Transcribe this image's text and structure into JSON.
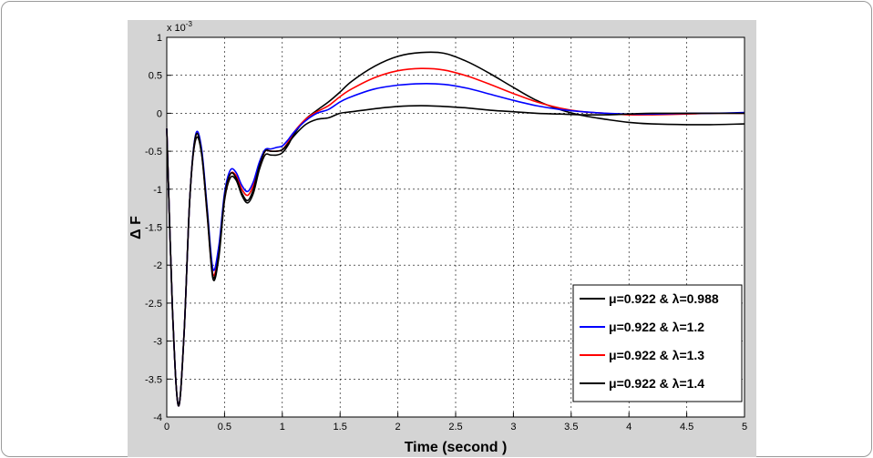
{
  "chart_data": {
    "type": "line",
    "title": "",
    "xlabel": "Time (second )",
    "ylabel": "Δ F",
    "y_multiplier_label": "x 10",
    "y_multiplier_exponent": "-3",
    "xlim": [
      0,
      5
    ],
    "ylim": [
      -4,
      1
    ],
    "x_ticks": [
      "0",
      "0.5",
      "1",
      "1.5",
      "2",
      "2.5",
      "3",
      "3.5",
      "4",
      "4.5",
      "5"
    ],
    "y_ticks": [
      "1",
      "0.5",
      "0",
      "-0.5",
      "-1",
      "-1.5",
      "-2",
      "-2.5",
      "-3",
      "-3.5",
      "-4"
    ],
    "grid": true,
    "legend_position": "bottom-right",
    "series": [
      {
        "name": "μ=0.922 & λ=0.988",
        "color": "#000000",
        "x": [
          0,
          0.05,
          0.1,
          0.15,
          0.2,
          0.25,
          0.3,
          0.35,
          0.4,
          0.45,
          0.5,
          0.55,
          0.6,
          0.65,
          0.7,
          0.75,
          0.8,
          0.85,
          0.9,
          0.95,
          1.0,
          1.05,
          1.1,
          1.2,
          1.3,
          1.4,
          1.5,
          1.6,
          1.8,
          2.0,
          2.2,
          2.4,
          2.6,
          2.8,
          3.0,
          3.2,
          3.4,
          3.6,
          3.8,
          4.0,
          4.2,
          4.5,
          4.7,
          5.0
        ],
        "y": [
          -0.2,
          -2.6,
          -3.85,
          -2.9,
          -1.1,
          -0.3,
          -0.5,
          -1.3,
          -2.15,
          -1.85,
          -1.1,
          -0.8,
          -0.85,
          -1.05,
          -1.15,
          -1.0,
          -0.7,
          -0.5,
          -0.5,
          -0.5,
          -0.48,
          -0.4,
          -0.3,
          -0.15,
          -0.08,
          -0.06,
          0.0,
          0.02,
          0.06,
          0.09,
          0.1,
          0.09,
          0.07,
          0.04,
          0.02,
          0.0,
          -0.01,
          -0.02,
          -0.02,
          -0.01,
          0.0,
          0.0,
          0.0,
          0.0
        ]
      },
      {
        "name": "μ=0.922 & λ=1.2",
        "color": "#0000ff",
        "x": [
          0,
          0.05,
          0.1,
          0.15,
          0.2,
          0.25,
          0.3,
          0.35,
          0.4,
          0.45,
          0.5,
          0.55,
          0.6,
          0.65,
          0.7,
          0.75,
          0.8,
          0.85,
          0.9,
          0.95,
          1.0,
          1.05,
          1.1,
          1.2,
          1.3,
          1.4,
          1.5,
          1.6,
          1.8,
          2.0,
          2.2,
          2.4,
          2.6,
          2.8,
          3.0,
          3.2,
          3.4,
          3.6,
          3.8,
          4.0,
          4.2,
          4.5,
          4.7,
          5.0
        ],
        "y": [
          -0.2,
          -2.6,
          -3.85,
          -2.9,
          -1.1,
          -0.28,
          -0.45,
          -1.25,
          -2.05,
          -1.75,
          -1.05,
          -0.75,
          -0.78,
          -0.95,
          -1.03,
          -0.9,
          -0.65,
          -0.48,
          -0.47,
          -0.45,
          -0.43,
          -0.35,
          -0.25,
          -0.1,
          0.0,
          0.05,
          0.15,
          0.22,
          0.32,
          0.37,
          0.39,
          0.38,
          0.33,
          0.25,
          0.17,
          0.1,
          0.05,
          0.02,
          0.0,
          -0.01,
          -0.01,
          0.0,
          0.0,
          0.01
        ]
      },
      {
        "name": "μ=0.922 & λ=1.3",
        "color": "#ff0000",
        "x": [
          0,
          0.05,
          0.1,
          0.15,
          0.2,
          0.25,
          0.3,
          0.35,
          0.4,
          0.45,
          0.5,
          0.55,
          0.6,
          0.65,
          0.7,
          0.75,
          0.8,
          0.85,
          0.9,
          0.95,
          1.0,
          1.05,
          1.1,
          1.2,
          1.3,
          1.4,
          1.5,
          1.6,
          1.8,
          2.0,
          2.2,
          2.4,
          2.6,
          2.8,
          3.0,
          3.2,
          3.4,
          3.6,
          3.8,
          4.0,
          4.2,
          4.5,
          4.7,
          5.0
        ],
        "y": [
          -0.2,
          -2.6,
          -3.85,
          -2.9,
          -1.1,
          -0.3,
          -0.48,
          -1.3,
          -2.12,
          -1.8,
          -1.1,
          -0.8,
          -0.82,
          -1.0,
          -1.08,
          -0.95,
          -0.7,
          -0.5,
          -0.5,
          -0.5,
          -0.48,
          -0.38,
          -0.25,
          -0.08,
          0.02,
          0.1,
          0.22,
          0.32,
          0.47,
          0.56,
          0.59,
          0.57,
          0.49,
          0.38,
          0.26,
          0.15,
          0.07,
          0.02,
          0.0,
          -0.02,
          -0.02,
          -0.01,
          0.0,
          0.0
        ]
      },
      {
        "name": "μ=0.922 & λ=1.4",
        "color": "#000000",
        "x": [
          0,
          0.05,
          0.1,
          0.15,
          0.2,
          0.25,
          0.3,
          0.35,
          0.4,
          0.45,
          0.5,
          0.55,
          0.6,
          0.65,
          0.7,
          0.75,
          0.8,
          0.85,
          0.9,
          0.95,
          1.0,
          1.05,
          1.1,
          1.2,
          1.3,
          1.4,
          1.5,
          1.6,
          1.8,
          2.0,
          2.2,
          2.4,
          2.6,
          2.8,
          3.0,
          3.2,
          3.4,
          3.6,
          3.8,
          4.0,
          4.2,
          4.5,
          4.7,
          5.0
        ],
        "y": [
          -0.2,
          -2.6,
          -3.85,
          -2.9,
          -1.1,
          -0.35,
          -0.52,
          -1.35,
          -2.18,
          -1.9,
          -1.15,
          -0.85,
          -0.88,
          -1.08,
          -1.18,
          -1.05,
          -0.75,
          -0.55,
          -0.55,
          -0.55,
          -0.52,
          -0.42,
          -0.28,
          -0.08,
          0.04,
          0.15,
          0.28,
          0.42,
          0.62,
          0.75,
          0.8,
          0.79,
          0.68,
          0.52,
          0.34,
          0.17,
          0.05,
          -0.03,
          -0.08,
          -0.12,
          -0.14,
          -0.15,
          -0.15,
          -0.14
        ]
      }
    ]
  }
}
